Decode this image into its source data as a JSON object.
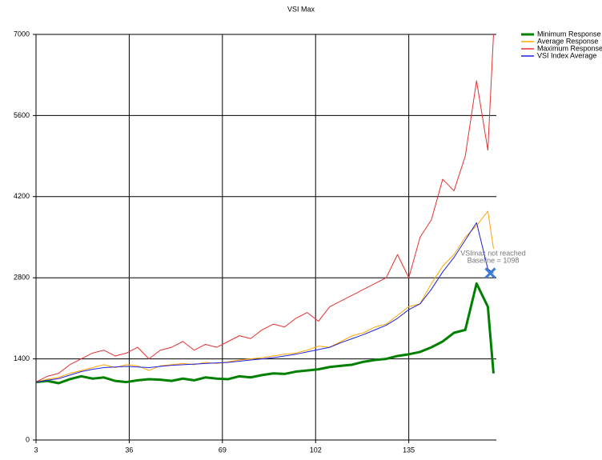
{
  "chart_data": {
    "type": "line",
    "title": "VSI Max",
    "x": [
      3,
      7,
      11,
      15,
      19,
      23,
      27,
      31,
      35,
      39,
      43,
      47,
      51,
      55,
      59,
      63,
      67,
      71,
      75,
      79,
      83,
      87,
      91,
      95,
      99,
      103,
      107,
      111,
      115,
      119,
      123,
      127,
      131,
      135,
      139,
      143,
      147,
      151,
      155,
      159,
      163,
      165
    ],
    "series": [
      {
        "name": "Minimum Response",
        "color": "#008000",
        "values": [
          1000,
          1020,
          980,
          1050,
          1100,
          1060,
          1080,
          1020,
          1000,
          1030,
          1050,
          1040,
          1020,
          1060,
          1030,
          1080,
          1060,
          1050,
          1100,
          1080,
          1120,
          1150,
          1140,
          1180,
          1200,
          1220,
          1260,
          1280,
          1300,
          1350,
          1380,
          1400,
          1450,
          1480,
          1520,
          1600,
          1700,
          1850,
          1900,
          2700,
          2300,
          1150
        ]
      },
      {
        "name": "Average Response",
        "color": "#ffa500",
        "values": [
          1000,
          1050,
          1080,
          1150,
          1200,
          1250,
          1300,
          1250,
          1300,
          1280,
          1200,
          1280,
          1300,
          1320,
          1300,
          1340,
          1320,
          1350,
          1380,
          1400,
          1420,
          1450,
          1480,
          1500,
          1550,
          1620,
          1600,
          1700,
          1800,
          1850,
          1950,
          2000,
          2150,
          2300,
          2350,
          2700,
          3000,
          3200,
          3500,
          3700,
          3950,
          3300
        ]
      },
      {
        "name": "Maximum Response",
        "color": "#e53030",
        "values": [
          1000,
          1100,
          1150,
          1300,
          1400,
          1500,
          1550,
          1450,
          1500,
          1600,
          1400,
          1550,
          1600,
          1700,
          1550,
          1650,
          1600,
          1700,
          1800,
          1750,
          1900,
          2000,
          1950,
          2100,
          2200,
          2050,
          2300,
          2400,
          2500,
          2600,
          2700,
          2800,
          3200,
          2800,
          3500,
          3800,
          4500,
          4300,
          4900,
          6200,
          5000,
          7000
        ]
      },
      {
        "name": "VSI Index Average",
        "color": "#2020e0",
        "values": [
          1000,
          1030,
          1060,
          1120,
          1180,
          1220,
          1250,
          1260,
          1270,
          1260,
          1250,
          1270,
          1290,
          1300,
          1310,
          1320,
          1330,
          1340,
          1360,
          1380,
          1400,
          1420,
          1450,
          1480,
          1520,
          1560,
          1600,
          1680,
          1750,
          1820,
          1900,
          1980,
          2100,
          2250,
          2350,
          2600,
          2900,
          3150,
          3450,
          3750,
          2950,
          2880
        ]
      }
    ],
    "xlim": [
      3,
      166
    ],
    "xticks": [
      3,
      36,
      69,
      102,
      135
    ],
    "ylim": [
      0,
      7000
    ],
    "yticks": [
      0,
      1400,
      2800,
      4200,
      5600,
      7000
    ],
    "grid": true,
    "legend": "top-right",
    "annotations": [
      "VSImax not reached",
      "Baseline = 1098"
    ]
  }
}
